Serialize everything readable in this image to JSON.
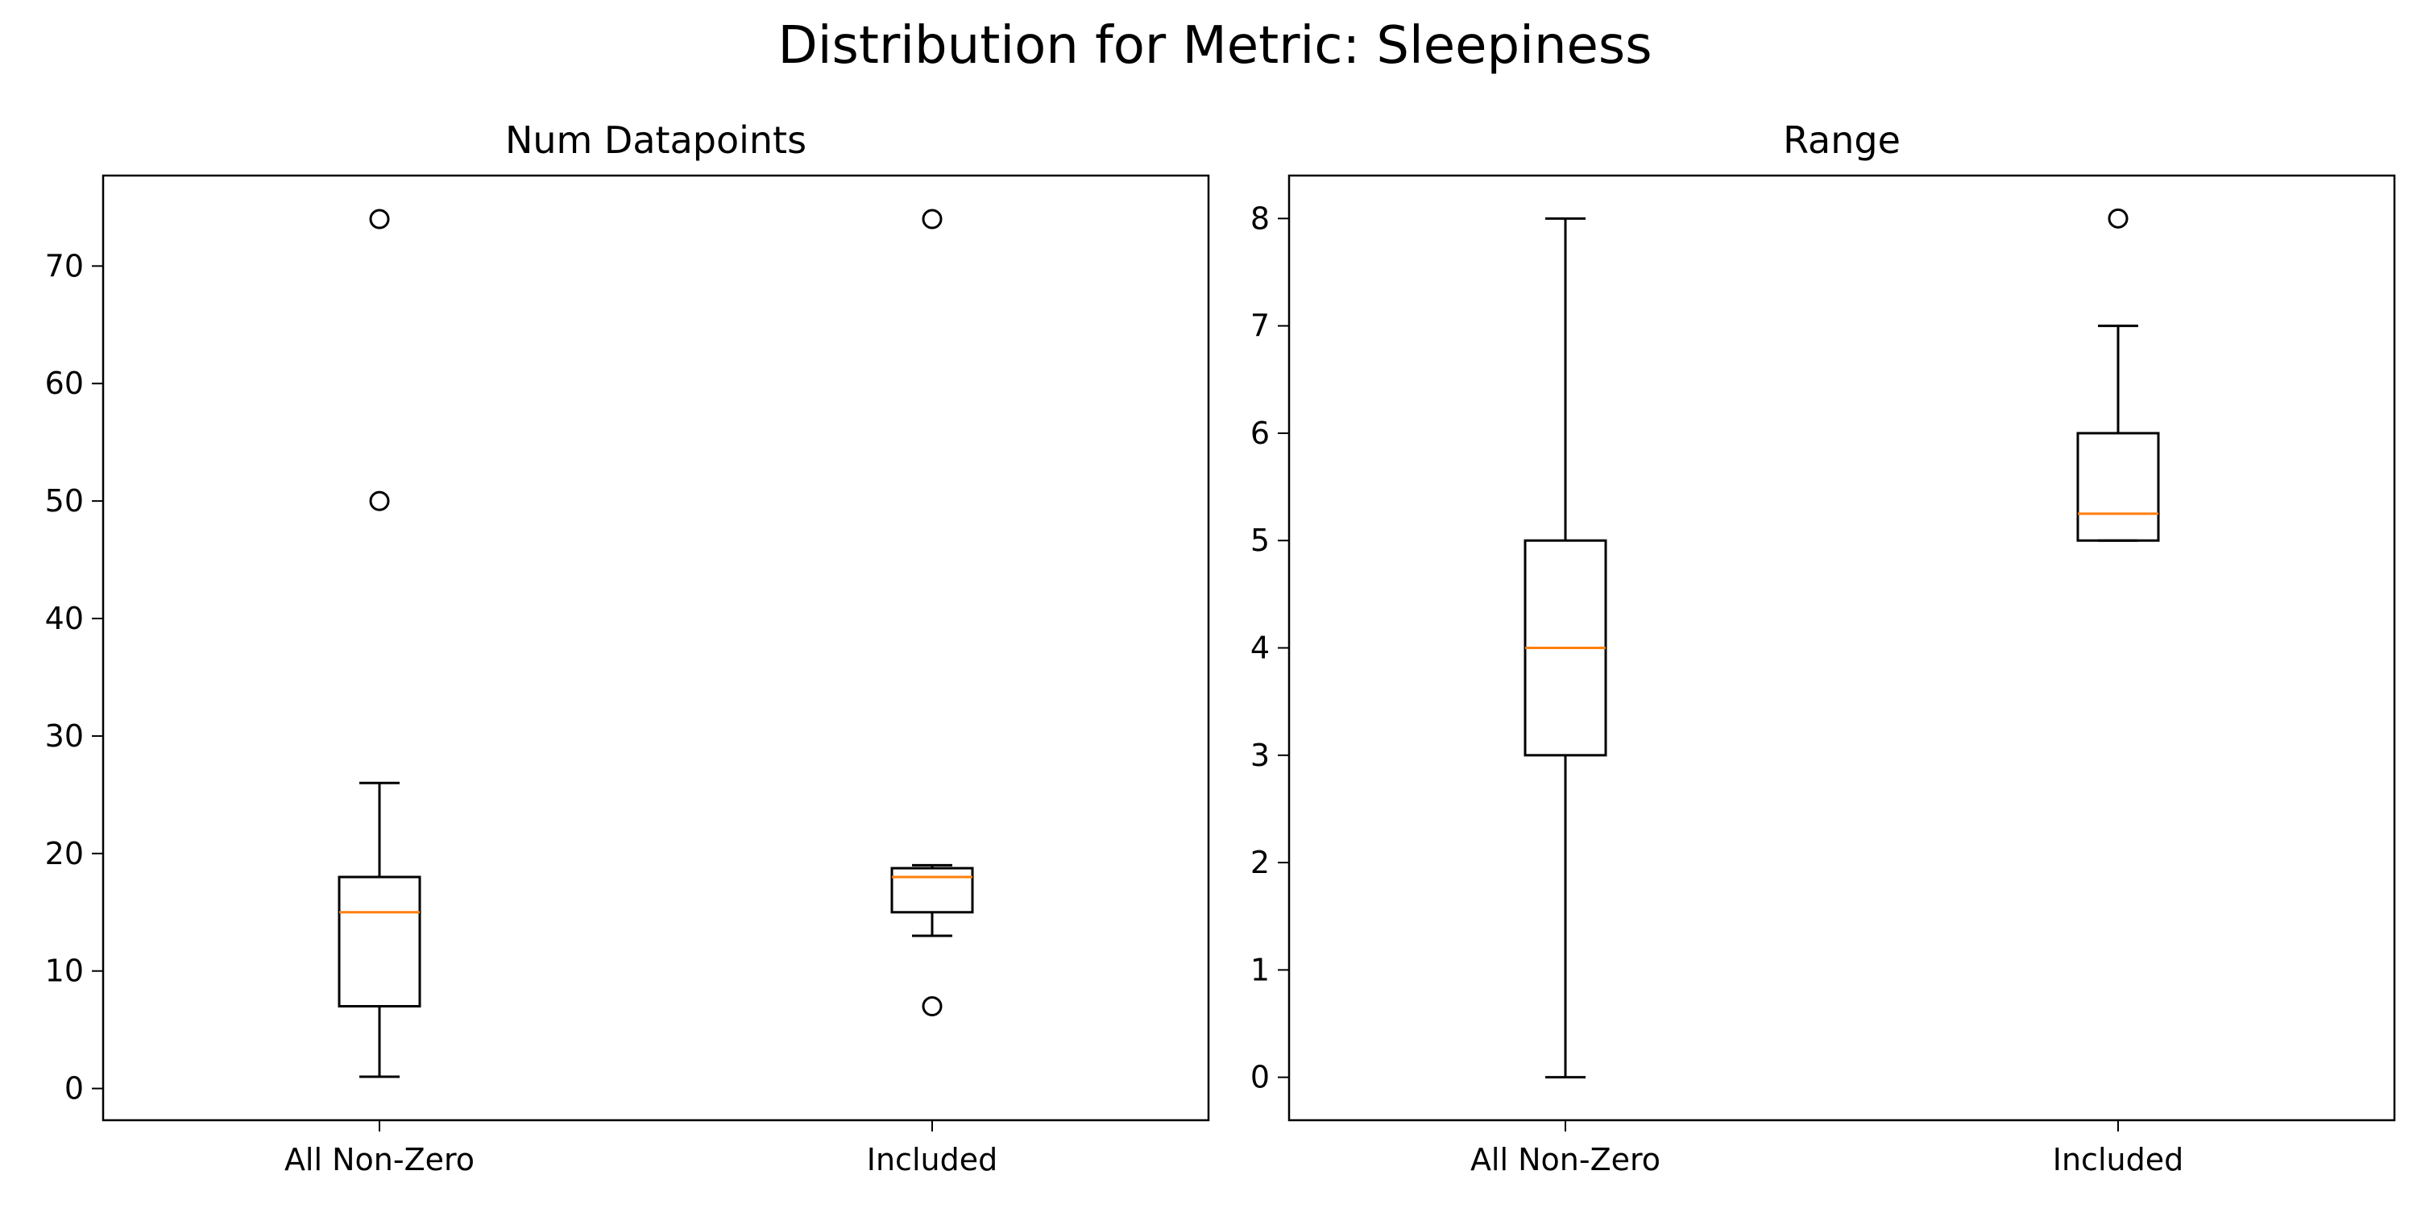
{
  "figure": {
    "suptitle": "Distribution for Metric: Sleepiness"
  },
  "chart_data": [
    {
      "type": "box",
      "title": "Num Datapoints",
      "xlabel": "",
      "ylabel": "",
      "ylim": [
        -2.7,
        77.7
      ],
      "yticks": [
        0,
        10,
        20,
        30,
        40,
        50,
        60,
        70
      ],
      "categories": [
        "All Non-Zero",
        "Included"
      ],
      "boxes": [
        {
          "whisker_low": 1,
          "q1": 7,
          "median": 15,
          "q3": 18,
          "whisker_high": 26,
          "outliers": [
            50,
            74
          ]
        },
        {
          "whisker_low": 13,
          "q1": 15,
          "median": 18,
          "q3": 18.75,
          "whisker_high": 19,
          "outliers": [
            7,
            74
          ]
        }
      ],
      "grid": false,
      "colors": {
        "box": "#000000",
        "median": "#ff7f0e"
      }
    },
    {
      "type": "box",
      "title": "Range",
      "xlabel": "",
      "ylabel": "",
      "ylim": [
        -0.4,
        8.4
      ],
      "yticks": [
        0,
        1,
        2,
        3,
        4,
        5,
        6,
        7,
        8
      ],
      "categories": [
        "All Non-Zero",
        "Included"
      ],
      "boxes": [
        {
          "whisker_low": 0,
          "q1": 3,
          "median": 4,
          "q3": 5,
          "whisker_high": 8,
          "outliers": []
        },
        {
          "whisker_low": 5,
          "q1": 5,
          "median": 5.25,
          "q3": 6,
          "whisker_high": 7,
          "outliers": [
            8
          ]
        }
      ],
      "grid": false,
      "colors": {
        "box": "#000000",
        "median": "#ff7f0e"
      }
    }
  ]
}
